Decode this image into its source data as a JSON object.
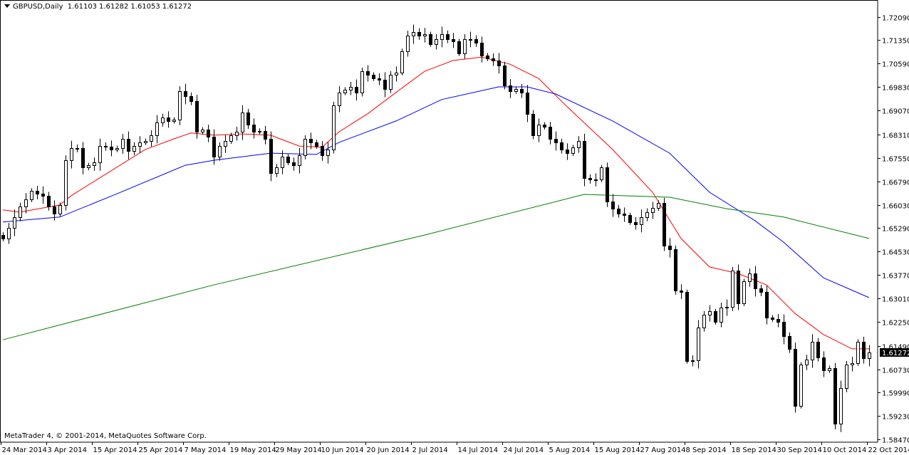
{
  "header": {
    "symbol": "GBPUSD,Daily",
    "open": "1.61103",
    "high": "1.61282",
    "low": "1.61053",
    "close": "1.61272"
  },
  "footer": {
    "copyright": "MetaTrader 4, © 2001-2014, MetaQuotes Software Corp."
  },
  "chart_data": {
    "type": "candlestick",
    "title": "GBPUSD,Daily",
    "ylim": [
      1.5847,
      1.7209
    ],
    "grid": false,
    "y_ticks": [
      "1.72090",
      "1.71350",
      "1.70590",
      "1.69830",
      "1.69070",
      "1.68310",
      "1.67550",
      "1.66790",
      "1.66030",
      "1.65290",
      "1.64530",
      "1.63770",
      "1.63010",
      "1.62250",
      "1.61490",
      "1.60730",
      "1.59990",
      "1.59230",
      "1.58470"
    ],
    "x_ticks": [
      "24 Mar 2014",
      "3 Apr 2014",
      "15 Apr 2014",
      "25 Apr 2014",
      "7 May 2014",
      "19 May 2014",
      "29 May 2014",
      "10 Jun 2014",
      "20 Jun 2014",
      "2 Jul 2014",
      "14 Jul 2014",
      "24 Jul 2014",
      "5 Aug 2014",
      "15 Aug 2014",
      "27 Aug 2014",
      "8 Sep 2014",
      "18 Sep 2014",
      "30 Sep 2014",
      "10 Oct 2014",
      "22 Oct 2014"
    ],
    "current_price_label": "1.61272",
    "current_price": 1.61272,
    "colors": {
      "bull_body": "#ffffff",
      "bear_body": "#000000",
      "outline": "#000000",
      "ma_fast": "#ff0000",
      "ma_mid": "#0000ff",
      "ma_slow": "#008000",
      "price_tag_bg": "#000000",
      "price_tag_text": "#ffffff"
    },
    "closes": [
      1.6495,
      1.6529,
      1.6564,
      1.6598,
      1.6621,
      1.6649,
      1.6639,
      1.6633,
      1.6598,
      1.6575,
      1.6603,
      1.6747,
      1.6786,
      1.6786,
      1.6724,
      1.6731,
      1.674,
      1.6793,
      1.6791,
      1.6782,
      1.6786,
      1.6816,
      1.6777,
      1.6793,
      1.6805,
      1.6809,
      1.6828,
      1.6869,
      1.6885,
      1.6874,
      1.6878,
      1.697,
      1.6954,
      1.6938,
      1.6839,
      1.6846,
      1.6823,
      1.6759,
      1.6793,
      1.6809,
      1.6828,
      1.6839,
      1.6901,
      1.6862,
      1.6839,
      1.6842,
      1.6816,
      1.6706,
      1.6724,
      1.6759,
      1.674,
      1.6731,
      1.6763,
      1.6816,
      1.6805,
      1.6793,
      1.6763,
      1.6782,
      1.6924,
      1.6966,
      1.6975,
      1.6984,
      1.6966,
      1.7034,
      1.7023,
      1.7012,
      1.7007,
      1.6977,
      1.7023,
      1.703,
      1.7099,
      1.7149,
      1.7161,
      1.7149,
      1.7154,
      1.7122,
      1.7138,
      1.7154,
      1.7138,
      1.7131,
      1.7092,
      1.7138,
      1.7138,
      1.7126,
      1.7085,
      1.7076,
      1.7069,
      1.7053,
      1.6989,
      1.697,
      1.6977,
      1.6966,
      1.6897,
      1.6828,
      1.6862,
      1.6855,
      1.6816,
      1.6805,
      1.6782,
      1.677,
      1.6789,
      1.6809,
      1.669,
      1.6685,
      1.6685,
      1.6724,
      1.6614,
      1.6591,
      1.6575,
      1.657,
      1.6548,
      1.6541,
      1.6564,
      1.658,
      1.6593,
      1.661,
      1.6472,
      1.646,
      1.6327,
      1.6322,
      1.61,
      1.6102,
      1.6208,
      1.6249,
      1.626,
      1.6226,
      1.6272,
      1.6274,
      1.6391,
      1.6286,
      1.6357,
      1.6382,
      1.6334,
      1.6322,
      1.624,
      1.6235,
      1.6226,
      1.618,
      1.6139,
      1.5955,
      1.6088,
      1.6104,
      1.6162,
      1.6111,
      1.607,
      1.6077,
      1.5897,
      1.6012,
      1.6088,
      1.6093,
      1.6162,
      1.6109,
      1.6127
    ],
    "moving_averages": [
      {
        "color": "#ff0000",
        "points": [
          [
            0,
            1.6587
          ],
          [
            3,
            1.658
          ],
          [
            10,
            1.6603
          ],
          [
            12,
            1.6633
          ],
          [
            25,
            1.6782
          ],
          [
            30,
            1.6816
          ],
          [
            33,
            1.6835
          ],
          [
            37,
            1.6828
          ],
          [
            42,
            1.6832
          ],
          [
            47,
            1.6828
          ],
          [
            52,
            1.6793
          ],
          [
            56,
            1.6789
          ],
          [
            59,
            1.6839
          ],
          [
            64,
            1.6897
          ],
          [
            69,
            1.6966
          ],
          [
            74,
            1.7034
          ],
          [
            79,
            1.7069
          ],
          [
            84,
            1.708
          ],
          [
            89,
            1.7057
          ],
          [
            94,
            1.7011
          ],
          [
            99,
            1.692
          ],
          [
            107,
            1.6782
          ],
          [
            114,
            1.6644
          ],
          [
            119,
            1.6495
          ],
          [
            124,
            1.6403
          ],
          [
            129,
            1.6382
          ],
          [
            134,
            1.6345
          ],
          [
            139,
            1.6253
          ],
          [
            144,
            1.6185
          ],
          [
            149,
            1.6139
          ],
          [
            152,
            1.6139
          ]
        ]
      },
      {
        "color": "#0000ff",
        "points": [
          [
            0,
            1.6548
          ],
          [
            10,
            1.6564
          ],
          [
            20,
            1.6639
          ],
          [
            32,
            1.6731
          ],
          [
            37,
            1.6747
          ],
          [
            47,
            1.677
          ],
          [
            55,
            1.6766
          ],
          [
            59,
            1.6805
          ],
          [
            69,
            1.6874
          ],
          [
            77,
            1.6943
          ],
          [
            87,
            1.6984
          ],
          [
            92,
            1.6984
          ],
          [
            97,
            1.6961
          ],
          [
            107,
            1.6874
          ],
          [
            117,
            1.677
          ],
          [
            124,
            1.6644
          ],
          [
            132,
            1.6552
          ],
          [
            137,
            1.6483
          ],
          [
            144,
            1.6368
          ],
          [
            152,
            1.6304
          ]
        ]
      },
      {
        "color": "#008000",
        "points": [
          [
            0,
            1.6168
          ],
          [
            37,
            1.6345
          ],
          [
            74,
            1.6506
          ],
          [
            102,
            1.6637
          ],
          [
            117,
            1.6628
          ],
          [
            127,
            1.6591
          ],
          [
            137,
            1.6564
          ],
          [
            152,
            1.6495
          ]
        ]
      }
    ]
  }
}
